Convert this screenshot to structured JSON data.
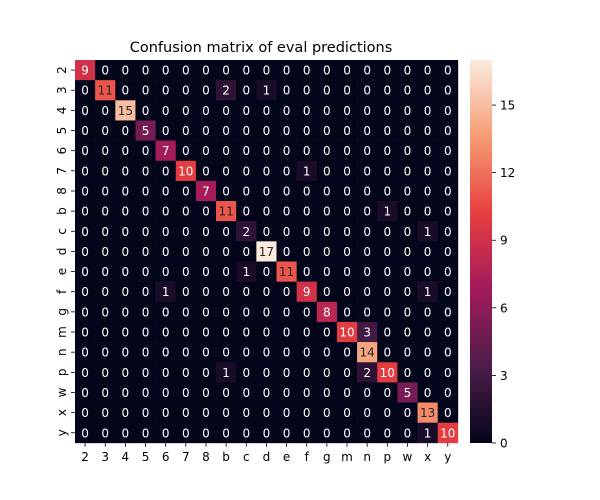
{
  "chart_data": {
    "type": "heatmap",
    "title": "Confusion matrix of eval predictions",
    "xlabel": "",
    "ylabel": "",
    "row_labels": [
      "2",
      "3",
      "4",
      "5",
      "6",
      "7",
      "8",
      "b",
      "c",
      "d",
      "e",
      "f",
      "g",
      "m",
      "n",
      "p",
      "w",
      "x",
      "y"
    ],
    "col_labels": [
      "2",
      "3",
      "4",
      "5",
      "6",
      "7",
      "8",
      "b",
      "c",
      "d",
      "e",
      "f",
      "g",
      "m",
      "n",
      "p",
      "w",
      "x",
      "y"
    ],
    "matrix": [
      [
        9,
        0,
        0,
        0,
        0,
        0,
        0,
        0,
        0,
        0,
        0,
        0,
        0,
        0,
        0,
        0,
        0,
        0,
        0
      ],
      [
        0,
        11,
        0,
        0,
        0,
        0,
        0,
        2,
        0,
        1,
        0,
        0,
        0,
        0,
        0,
        0,
        0,
        0,
        0
      ],
      [
        0,
        0,
        15,
        0,
        0,
        0,
        0,
        0,
        0,
        0,
        0,
        0,
        0,
        0,
        0,
        0,
        0,
        0,
        0
      ],
      [
        0,
        0,
        0,
        5,
        0,
        0,
        0,
        0,
        0,
        0,
        0,
        0,
        0,
        0,
        0,
        0,
        0,
        0,
        0
      ],
      [
        0,
        0,
        0,
        0,
        7,
        0,
        0,
        0,
        0,
        0,
        0,
        0,
        0,
        0,
        0,
        0,
        0,
        0,
        0
      ],
      [
        0,
        0,
        0,
        0,
        0,
        10,
        0,
        0,
        0,
        0,
        0,
        1,
        0,
        0,
        0,
        0,
        0,
        0,
        0
      ],
      [
        0,
        0,
        0,
        0,
        0,
        0,
        7,
        0,
        0,
        0,
        0,
        0,
        0,
        0,
        0,
        0,
        0,
        0,
        0
      ],
      [
        0,
        0,
        0,
        0,
        0,
        0,
        0,
        11,
        0,
        0,
        0,
        0,
        0,
        0,
        0,
        1,
        0,
        0,
        0
      ],
      [
        0,
        0,
        0,
        0,
        0,
        0,
        0,
        0,
        2,
        0,
        0,
        0,
        0,
        0,
        0,
        0,
        0,
        1,
        0
      ],
      [
        0,
        0,
        0,
        0,
        0,
        0,
        0,
        0,
        0,
        17,
        0,
        0,
        0,
        0,
        0,
        0,
        0,
        0,
        0
      ],
      [
        0,
        0,
        0,
        0,
        0,
        0,
        0,
        0,
        1,
        0,
        11,
        0,
        0,
        0,
        0,
        0,
        0,
        0,
        0
      ],
      [
        0,
        0,
        0,
        0,
        1,
        0,
        0,
        0,
        0,
        0,
        0,
        9,
        0,
        0,
        0,
        0,
        0,
        1,
        0
      ],
      [
        0,
        0,
        0,
        0,
        0,
        0,
        0,
        0,
        0,
        0,
        0,
        0,
        8,
        0,
        0,
        0,
        0,
        0,
        0
      ],
      [
        0,
        0,
        0,
        0,
        0,
        0,
        0,
        0,
        0,
        0,
        0,
        0,
        0,
        10,
        3,
        0,
        0,
        0,
        0
      ],
      [
        0,
        0,
        0,
        0,
        0,
        0,
        0,
        0,
        0,
        0,
        0,
        0,
        0,
        0,
        14,
        0,
        0,
        0,
        0
      ],
      [
        0,
        0,
        0,
        0,
        0,
        0,
        0,
        1,
        0,
        0,
        0,
        0,
        0,
        0,
        2,
        10,
        0,
        0,
        0
      ],
      [
        0,
        0,
        0,
        0,
        0,
        0,
        0,
        0,
        0,
        0,
        0,
        0,
        0,
        0,
        0,
        0,
        5,
        0,
        0
      ],
      [
        0,
        0,
        0,
        0,
        0,
        0,
        0,
        0,
        0,
        0,
        0,
        0,
        0,
        0,
        0,
        0,
        0,
        13,
        0
      ],
      [
        0,
        0,
        0,
        0,
        0,
        0,
        0,
        0,
        0,
        0,
        0,
        0,
        0,
        0,
        0,
        0,
        0,
        1,
        10
      ]
    ],
    "vmin": 0,
    "vmax": 17,
    "colorbar_ticks": [
      0,
      3,
      6,
      9,
      12,
      15
    ],
    "colormap": "rocket",
    "colormap_stops": [
      "#03051a",
      "#4c1d4b",
      "#a11a5b",
      "#e83f3f",
      "#f69c73",
      "#faebdd"
    ],
    "annotation_color_dark": "#262626",
    "annotation_color_light": "#ffffff",
    "grid": false
  }
}
